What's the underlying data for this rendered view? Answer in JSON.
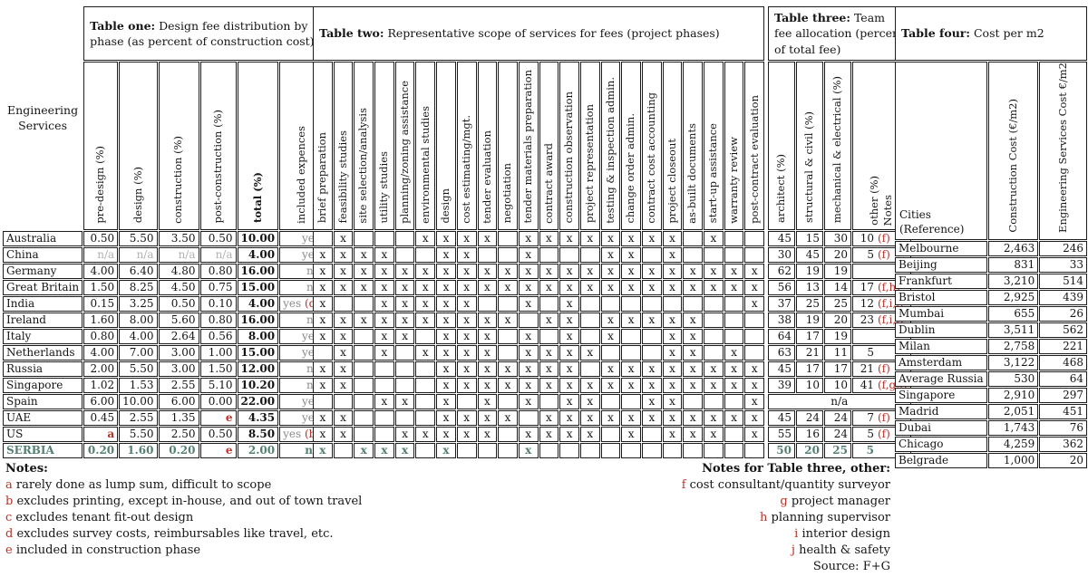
{
  "table_one": {
    "title_bold": "Table one:",
    "title_rest": " Design fee distribution by phase (as percent of construction cost)",
    "row_header": "Engineering Services",
    "columns": [
      "pre-design (%)",
      "design (%)",
      "construction (%)",
      "post-construction (%)",
      "total (%)",
      "included expences"
    ],
    "col_shading": [
      "gray",
      "dark",
      "light",
      "gray",
      "none",
      "none"
    ],
    "rows": [
      {
        "country": "Australia",
        "values": [
          "0.50",
          "5.50",
          "3.50",
          "0.50",
          "10.00"
        ],
        "expences": "yes",
        "note": ""
      },
      {
        "country": "China",
        "values": [
          "n/a",
          "n/a",
          "n/a",
          "n/a",
          "4.00"
        ],
        "expences": "yes",
        "note": ""
      },
      {
        "country": "Germany",
        "values": [
          "4.00",
          "6.40",
          "4.80",
          "0.80",
          "16.00"
        ],
        "expences": "no",
        "note": ""
      },
      {
        "country": "Great Britain",
        "values": [
          "1.50",
          "8.25",
          "4.50",
          "0.75",
          "15.00"
        ],
        "expences": "no",
        "note": ""
      },
      {
        "country": "India",
        "values": [
          "0.15",
          "3.25",
          "0.50",
          "0.10",
          "4.00"
        ],
        "expences": "yes",
        "note": "(d)"
      },
      {
        "country": "Ireland",
        "values": [
          "1.60",
          "8.00",
          "5.60",
          "0.80",
          "16.00"
        ],
        "expences": "no",
        "note": ""
      },
      {
        "country": "Italy",
        "values": [
          "0.80",
          "4.00",
          "2.64",
          "0.56",
          "8.00"
        ],
        "expences": "yes",
        "note": ""
      },
      {
        "country": "Netherlands",
        "values": [
          "4.00",
          "7.00",
          "3.00",
          "1.00",
          "15.00"
        ],
        "expences": "yes",
        "note": ""
      },
      {
        "country": "Russia",
        "values": [
          "2.00",
          "5.50",
          "3.00",
          "1.50",
          "12.00"
        ],
        "expences": "no",
        "note": ""
      },
      {
        "country": "Singapore",
        "values": [
          "1.02",
          "1.53",
          "2.55",
          "5.10",
          "10.20"
        ],
        "expences": "no",
        "note": ""
      },
      {
        "country": "Spain",
        "values": [
          "6.00",
          "10.00",
          "6.00",
          "0.00",
          "22.00"
        ],
        "expences": "yes",
        "note": ""
      },
      {
        "country": "UAE",
        "values": [
          "0.45",
          "2.55",
          "1.35",
          "e",
          "4.35"
        ],
        "expences": "yes",
        "note": ""
      },
      {
        "country": "US",
        "values": [
          "a",
          "5.50",
          "2.50",
          "0.50",
          "8.50"
        ],
        "expences": "yes",
        "note": "(b)"
      },
      {
        "country": "SERBIA",
        "values": [
          "0.20",
          "1.60",
          "0.20",
          "e",
          "2.00"
        ],
        "expences": "no",
        "note": "",
        "highlight": true
      }
    ]
  },
  "table_two": {
    "title_bold": "Table two:",
    "title_rest": " Representative scope of services for fees (project phases)",
    "mark": "x",
    "columns": [
      "brief preparation",
      "feasibility studies",
      "site selection/analysis",
      "utility studies",
      "planning/zoning assistance",
      "environmental studies",
      "design",
      "cost estimating/mgt.",
      "tender evaluation",
      "negotiation",
      "tender materials preparation",
      "contract award",
      "construction observation",
      "project representation",
      "testing & inspection admin.",
      "change order admin.",
      "contract cost accounting",
      "project closeout",
      "as-built documents",
      "start-up assistance",
      "warranty review",
      "post-contract evaluation"
    ],
    "col_shading": [
      "gray",
      "gray",
      "gray",
      "gray",
      "gray",
      "gray",
      "dark",
      "light",
      "light",
      "light",
      "light",
      "light",
      "light",
      "light",
      "light",
      "light",
      "light",
      "light",
      "light",
      "gray",
      "gray",
      "gray"
    ],
    "rows": [
      {
        "country": "Australia",
        "marks": [
          0,
          1,
          0,
          0,
          0,
          1,
          1,
          1,
          1,
          0,
          1,
          1,
          1,
          1,
          1,
          1,
          1,
          1,
          0,
          1,
          0,
          0
        ]
      },
      {
        "country": "China",
        "marks": [
          1,
          1,
          1,
          1,
          0,
          0,
          1,
          1,
          0,
          0,
          1,
          0,
          0,
          0,
          1,
          1,
          0,
          1,
          0,
          0,
          0,
          0
        ]
      },
      {
        "country": "Germany",
        "marks": [
          1,
          1,
          1,
          1,
          1,
          1,
          1,
          1,
          1,
          1,
          1,
          1,
          1,
          1,
          1,
          1,
          1,
          1,
          1,
          1,
          1,
          1
        ]
      },
      {
        "country": "Great Britain",
        "marks": [
          1,
          1,
          1,
          1,
          1,
          1,
          1,
          1,
          1,
          1,
          1,
          1,
          1,
          1,
          1,
          1,
          1,
          1,
          1,
          1,
          1,
          1
        ]
      },
      {
        "country": "India",
        "marks": [
          1,
          0,
          0,
          1,
          1,
          1,
          1,
          1,
          0,
          0,
          1,
          0,
          1,
          0,
          0,
          0,
          0,
          0,
          0,
          0,
          0,
          1
        ]
      },
      {
        "country": "Ireland",
        "marks": [
          1,
          1,
          1,
          1,
          1,
          1,
          1,
          1,
          1,
          1,
          0,
          1,
          1,
          0,
          1,
          1,
          1,
          1,
          1,
          0,
          0,
          0
        ]
      },
      {
        "country": "Italy",
        "marks": [
          1,
          1,
          0,
          1,
          1,
          0,
          1,
          1,
          1,
          0,
          1,
          0,
          1,
          0,
          1,
          0,
          0,
          1,
          1,
          0,
          0,
          0
        ]
      },
      {
        "country": "Netherlands",
        "marks": [
          0,
          1,
          0,
          1,
          0,
          1,
          1,
          1,
          1,
          0,
          1,
          1,
          1,
          1,
          0,
          0,
          0,
          1,
          1,
          0,
          1,
          0
        ]
      },
      {
        "country": "Russia",
        "marks": [
          1,
          1,
          0,
          0,
          0,
          0,
          1,
          1,
          1,
          1,
          1,
          1,
          1,
          0,
          1,
          1,
          1,
          1,
          1,
          1,
          1,
          1
        ]
      },
      {
        "country": "Singapore",
        "marks": [
          1,
          1,
          0,
          0,
          0,
          0,
          1,
          1,
          1,
          1,
          1,
          1,
          1,
          1,
          1,
          1,
          1,
          1,
          1,
          1,
          1,
          1
        ]
      },
      {
        "country": "Spain",
        "marks": [
          0,
          0,
          0,
          1,
          1,
          0,
          1,
          0,
          1,
          0,
          1,
          0,
          1,
          1,
          0,
          0,
          1,
          1,
          0,
          0,
          0,
          1
        ]
      },
      {
        "country": "UAE",
        "marks": [
          1,
          1,
          0,
          0,
          0,
          0,
          1,
          1,
          1,
          1,
          0,
          1,
          1,
          1,
          1,
          1,
          1,
          1,
          1,
          1,
          1,
          1
        ]
      },
      {
        "country": "US",
        "marks": [
          1,
          1,
          0,
          0,
          1,
          1,
          1,
          1,
          1,
          0,
          1,
          1,
          1,
          1,
          0,
          1,
          0,
          1,
          1,
          1,
          0,
          1
        ]
      },
      {
        "country": "SERBIA",
        "marks": [
          1,
          0,
          1,
          1,
          1,
          0,
          1,
          0,
          0,
          0,
          1,
          0,
          0,
          0,
          0,
          0,
          0,
          0,
          0,
          0,
          0,
          0
        ],
        "highlight": true
      }
    ]
  },
  "table_three": {
    "title_bold": "Table three:",
    "title_rest": " Team fee allocation (percent of total fee)",
    "columns": [
      "architect (%)",
      "structural & civil (%)",
      "mechanical & electrical (%)",
      "other (%)",
      "Notes"
    ],
    "rows": [
      {
        "values": [
          "45",
          "15",
          "30",
          "10"
        ],
        "note": "(f)"
      },
      {
        "values": [
          "30",
          "45",
          "20",
          "5"
        ],
        "note": "(f)"
      },
      {
        "values": [
          "62",
          "19",
          "19",
          ""
        ],
        "note": ""
      },
      {
        "values": [
          "56",
          "13",
          "14",
          "17"
        ],
        "note": "(f,h)"
      },
      {
        "values": [
          "37",
          "25",
          "25",
          "12"
        ],
        "note": "(f,i,j)"
      },
      {
        "values": [
          "38",
          "19",
          "20",
          "23"
        ],
        "note": "(f,i,j)"
      },
      {
        "values": [
          "64",
          "17",
          "19",
          ""
        ],
        "note": ""
      },
      {
        "values": [
          "63",
          "21",
          "11",
          "5"
        ],
        "note": ""
      },
      {
        "values": [
          "45",
          "17",
          "17",
          "21"
        ],
        "note": "(f)"
      },
      {
        "values": [
          "39",
          "10",
          "10",
          "41"
        ],
        "note": "(f,g,i)"
      },
      {
        "na": "n/a"
      },
      {
        "values": [
          "45",
          "24",
          "24",
          "7"
        ],
        "note": "(f)"
      },
      {
        "values": [
          "55",
          "16",
          "24",
          "5"
        ],
        "note": "(f)"
      },
      {
        "values": [
          "50",
          "20",
          "25",
          "5"
        ],
        "note": "",
        "highlight": true
      }
    ]
  },
  "table_four": {
    "title_bold": "Table four:",
    "title_rest": " Cost per m2",
    "row_header": [
      "Cities",
      "(Reference)"
    ],
    "columns": [
      "Construction Cost (€/m2)",
      "Engineering Services Cost €/m2"
    ],
    "rows": [
      {
        "city": "Melbourne",
        "construction": "2,463",
        "engineering": "246"
      },
      {
        "city": "Beijing",
        "construction": "831",
        "engineering": "33"
      },
      {
        "city": "Frankfurt",
        "construction": "3,210",
        "engineering": "514"
      },
      {
        "city": "Bristol",
        "construction": "2,925",
        "engineering": "439"
      },
      {
        "city": "Mumbai",
        "construction": "655",
        "engineering": "26"
      },
      {
        "city": "Dublin",
        "construction": "3,511",
        "engineering": "562"
      },
      {
        "city": "Milan",
        "construction": "2,758",
        "engineering": "221"
      },
      {
        "city": "Amsterdam",
        "construction": "3,122",
        "engineering": "468"
      },
      {
        "city": "Average Russia",
        "construction": "530",
        "engineering": "64"
      },
      {
        "city": "Singapore",
        "construction": "2,910",
        "engineering": "297"
      },
      {
        "city": "Madrid",
        "construction": "2,051",
        "engineering": "451"
      },
      {
        "city": "Dubai",
        "construction": "1,743",
        "engineering": "76"
      },
      {
        "city": "Chicago",
        "construction": "4,259",
        "engineering": "362"
      },
      {
        "city": "Belgrade",
        "construction": "1,000",
        "engineering": "20"
      }
    ]
  },
  "notes_left": {
    "heading": "Notes:",
    "items": [
      {
        "key": "a",
        "text": "rarely done as lump sum, difficult to scope"
      },
      {
        "key": "b",
        "text": "excludes printing, except in-house, and out of town travel"
      },
      {
        "key": "c",
        "text": "excludes tenant fit-out design"
      },
      {
        "key": "d",
        "text": "excludes survey costs, reimbursables like travel, etc."
      },
      {
        "key": "e",
        "text": "included in construction phase"
      }
    ]
  },
  "notes_right": {
    "heading": "Notes for Table three, other:",
    "items": [
      {
        "key": "f",
        "text": "cost consultant/quantity surveyor"
      },
      {
        "key": "g",
        "text": "project manager"
      },
      {
        "key": "h",
        "text": "planning supervisor"
      },
      {
        "key": "i",
        "text": "interior design"
      },
      {
        "key": "j",
        "text": "health & safety"
      }
    ],
    "source": "Source: F+G"
  },
  "colors": {
    "accent_red": "#c22f27",
    "accent_teal": "#54806f",
    "shade_gray": "#d6d6d6",
    "shade_dark": "#a7a7a7",
    "shade_light": "#ececec"
  }
}
